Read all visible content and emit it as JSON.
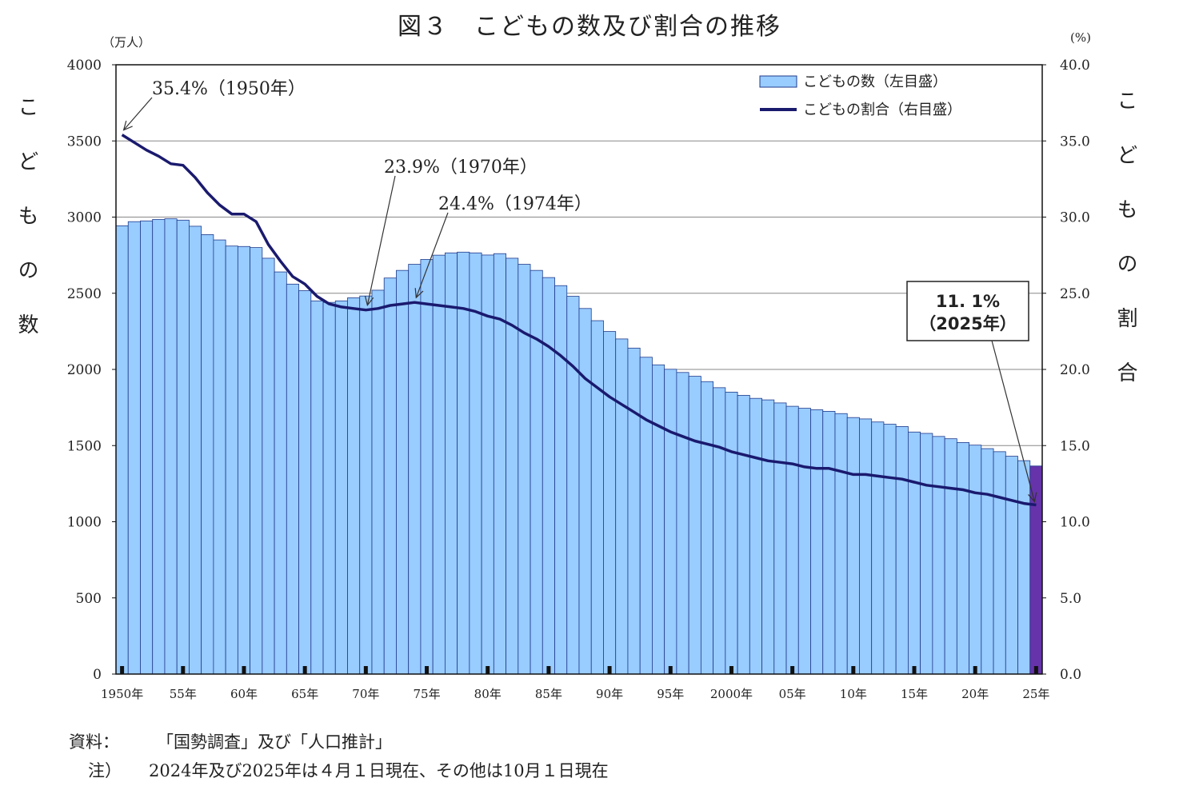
{
  "title": "図３　こどもの数及び割合の推移",
  "left_unit": "（万人）",
  "right_unit": "(%)",
  "left_axis_vertical_label": "こどもの数",
  "right_axis_vertical_label": "こどもの割合",
  "source_label": "資料：",
  "source_text": "「国勢調査」及び「人口推計」",
  "note_label": "注）",
  "note_text": "2024年及び2025年は４月１日現在、その他は10月１日現在",
  "colors": {
    "bar_fill": "#99ccff",
    "bar_stroke": "#1f3a8a",
    "bar_highlight": "#6633aa",
    "line": "#1a1a6e",
    "grid": "#888888"
  },
  "chart_data": {
    "type": "bar+line",
    "x": [
      1950,
      1951,
      1952,
      1953,
      1954,
      1955,
      1956,
      1957,
      1958,
      1959,
      1960,
      1961,
      1962,
      1963,
      1964,
      1965,
      1966,
      1967,
      1968,
      1969,
      1970,
      1971,
      1972,
      1973,
      1974,
      1975,
      1976,
      1977,
      1978,
      1979,
      1980,
      1981,
      1982,
      1983,
      1984,
      1985,
      1986,
      1987,
      1988,
      1989,
      1990,
      1991,
      1992,
      1993,
      1994,
      1995,
      1996,
      1997,
      1998,
      1999,
      2000,
      2001,
      2002,
      2003,
      2004,
      2005,
      2006,
      2007,
      2008,
      2009,
      2010,
      2011,
      2012,
      2013,
      2014,
      2015,
      2016,
      2017,
      2018,
      2019,
      2020,
      2021,
      2022,
      2023,
      2024,
      2025
    ],
    "x_tick_labels": [
      "1950年",
      "55年",
      "60年",
      "65年",
      "70年",
      "75年",
      "80年",
      "85年",
      "90年",
      "95年",
      "2000年",
      "05年",
      "10年",
      "15年",
      "20年",
      "25年"
    ],
    "x_tick_years": [
      1950,
      1955,
      1960,
      1965,
      1970,
      1975,
      1980,
      1985,
      1990,
      1995,
      2000,
      2005,
      2010,
      2015,
      2020,
      2025
    ],
    "series": [
      {
        "name": "こどもの数（左目盛）",
        "kind": "bar",
        "axis": "left",
        "values": [
          2943,
          2970,
          2975,
          2985,
          2989,
          2980,
          2940,
          2885,
          2850,
          2810,
          2807,
          2800,
          2730,
          2640,
          2560,
          2517,
          2450,
          2440,
          2450,
          2470,
          2482,
          2520,
          2600,
          2650,
          2690,
          2722,
          2750,
          2765,
          2770,
          2765,
          2751,
          2760,
          2730,
          2690,
          2650,
          2603,
          2550,
          2480,
          2400,
          2320,
          2249,
          2200,
          2140,
          2080,
          2030,
          2001,
          1980,
          1955,
          1920,
          1880,
          1851,
          1830,
          1810,
          1800,
          1780,
          1758,
          1745,
          1735,
          1725,
          1710,
          1684,
          1675,
          1655,
          1640,
          1625,
          1589,
          1580,
          1560,
          1545,
          1520,
          1503,
          1480,
          1460,
          1430,
          1401,
          1366
        ]
      },
      {
        "name": "こどもの割合（右目盛）",
        "kind": "line",
        "axis": "right",
        "values": [
          35.4,
          34.9,
          34.4,
          34.0,
          33.5,
          33.4,
          32.6,
          31.6,
          30.8,
          30.2,
          30.2,
          29.7,
          28.2,
          27.1,
          26.1,
          25.6,
          24.8,
          24.3,
          24.1,
          24.0,
          23.9,
          24.0,
          24.2,
          24.3,
          24.4,
          24.3,
          24.2,
          24.1,
          24.0,
          23.8,
          23.5,
          23.3,
          22.9,
          22.4,
          22.0,
          21.5,
          20.9,
          20.2,
          19.4,
          18.8,
          18.2,
          17.7,
          17.2,
          16.7,
          16.3,
          15.9,
          15.6,
          15.3,
          15.1,
          14.9,
          14.6,
          14.4,
          14.2,
          14.0,
          13.9,
          13.8,
          13.6,
          13.5,
          13.5,
          13.3,
          13.1,
          13.1,
          13.0,
          12.9,
          12.8,
          12.6,
          12.4,
          12.3,
          12.2,
          12.1,
          11.9,
          11.8,
          11.6,
          11.4,
          11.2,
          11.1
        ]
      }
    ],
    "ylim_left": [
      0,
      4000
    ],
    "ylim_right": [
      0,
      40
    ],
    "left_ticks": [
      0,
      500,
      1000,
      1500,
      2000,
      2500,
      3000,
      3500,
      4000
    ],
    "left_tick_labels": [
      "0",
      "500",
      "1000",
      "1500",
      "2000",
      "2500",
      "3000",
      "3500",
      "4000"
    ],
    "right_ticks": [
      0,
      5,
      10,
      15,
      20,
      25,
      30,
      35,
      40
    ],
    "right_tick_labels": [
      "0.0",
      "5.0",
      "10.0",
      "15.0",
      "20.0",
      "25.0",
      "30.0",
      "35.0",
      "40.0"
    ],
    "grid": true,
    "legend_position": "top-right",
    "highlight_year": 2025,
    "annotations": [
      {
        "text": "35.4%（1950年）",
        "year": 1950,
        "value": 35.4
      },
      {
        "text": "23.9%（1970年）",
        "year": 1970,
        "value": 23.9
      },
      {
        "text": "24.4%（1974年）",
        "year": 1974,
        "value": 24.4
      },
      {
        "text": "11. 1%\n（2025年）",
        "year": 2025,
        "value": 11.1,
        "boxed": true
      }
    ]
  }
}
